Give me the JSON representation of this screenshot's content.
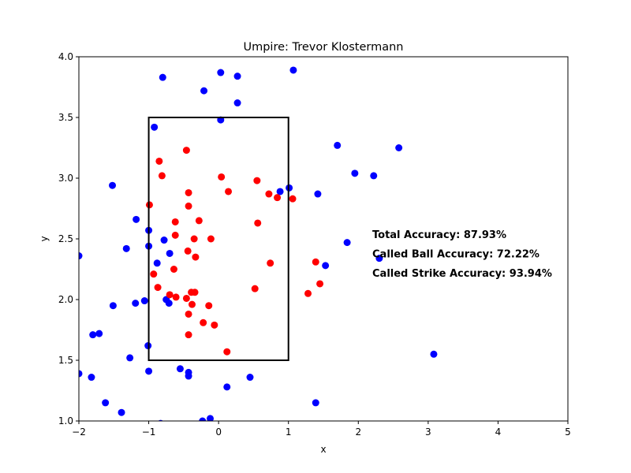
{
  "chart_data": {
    "type": "scatter",
    "title": "Umpire: Trevor Klostermann",
    "xlabel": "x",
    "ylabel": "y",
    "xlim": [
      -2,
      5
    ],
    "ylim": [
      1.0,
      4.0
    ],
    "xticks": [
      -2,
      -1,
      0,
      1,
      2,
      3,
      4,
      5
    ],
    "xtick_labels": [
      "−2",
      "−1",
      "0",
      "1",
      "2",
      "3",
      "4",
      "5"
    ],
    "yticks": [
      1.0,
      1.5,
      2.0,
      2.5,
      3.0,
      3.5,
      4.0
    ],
    "ytick_labels": [
      "1.0",
      "1.5",
      "2.0",
      "2.5",
      "3.0",
      "3.5",
      "4.0"
    ],
    "grid": false,
    "strike_zone": {
      "x": [
        -1,
        1
      ],
      "y": [
        1.5,
        3.5
      ]
    },
    "annotations": [
      {
        "text": "Total Accuracy: 87.93%",
        "x": 2.2,
        "y": 2.53
      },
      {
        "text": "Called Ball Accuracy: 72.22%",
        "x": 2.2,
        "y": 2.37
      },
      {
        "text": "Called Strike Accuracy: 93.94%",
        "x": 2.2,
        "y": 2.21
      }
    ],
    "series": [
      {
        "color": "#0000ff",
        "points": [
          [
            -0.8,
            3.83
          ],
          [
            0.03,
            3.87
          ],
          [
            0.27,
            3.84
          ],
          [
            1.07,
            3.89
          ],
          [
            -0.21,
            3.72
          ],
          [
            0.27,
            3.62
          ],
          [
            0.03,
            3.48
          ],
          [
            -0.92,
            3.42
          ],
          [
            1.7,
            3.27
          ],
          [
            2.58,
            3.25
          ],
          [
            1.95,
            3.04
          ],
          [
            2.22,
            3.02
          ],
          [
            -1.52,
            2.94
          ],
          [
            1.01,
            2.92
          ],
          [
            0.88,
            2.89
          ],
          [
            1.42,
            2.87
          ],
          [
            -1.18,
            2.66
          ],
          [
            -1.0,
            2.57
          ],
          [
            -0.78,
            2.49
          ],
          [
            1.84,
            2.47
          ],
          [
            -1.0,
            2.44
          ],
          [
            -1.32,
            2.42
          ],
          [
            -0.7,
            2.38
          ],
          [
            -2.0,
            2.36
          ],
          [
            2.3,
            2.34
          ],
          [
            -0.88,
            2.3
          ],
          [
            1.53,
            2.28
          ],
          [
            -0.75,
            2.0
          ],
          [
            -1.06,
            1.99
          ],
          [
            -0.71,
            1.97
          ],
          [
            -1.19,
            1.97
          ],
          [
            -1.51,
            1.95
          ],
          [
            -1.71,
            1.72
          ],
          [
            -1.8,
            1.71
          ],
          [
            -1.01,
            1.62
          ],
          [
            -1.27,
            1.52
          ],
          [
            3.08,
            1.55
          ],
          [
            -0.55,
            1.43
          ],
          [
            -1.0,
            1.41
          ],
          [
            -2.0,
            1.39
          ],
          [
            -0.43,
            1.4
          ],
          [
            -1.82,
            1.36
          ],
          [
            -0.43,
            1.37
          ],
          [
            0.45,
            1.36
          ],
          [
            0.12,
            1.28
          ],
          [
            -1.62,
            1.15
          ],
          [
            1.39,
            1.15
          ],
          [
            -1.39,
            1.07
          ],
          [
            -0.12,
            1.02
          ],
          [
            -0.23,
            1.0
          ],
          [
            -0.83,
            0.98
          ]
        ]
      },
      {
        "color": "#ff0000",
        "points": [
          [
            -0.46,
            3.23
          ],
          [
            -0.85,
            3.14
          ],
          [
            -0.81,
            3.02
          ],
          [
            0.04,
            3.01
          ],
          [
            0.55,
            2.98
          ],
          [
            -0.43,
            2.88
          ],
          [
            0.14,
            2.89
          ],
          [
            0.72,
            2.87
          ],
          [
            0.84,
            2.84
          ],
          [
            1.06,
            2.83
          ],
          [
            -0.99,
            2.78
          ],
          [
            -0.43,
            2.77
          ],
          [
            -0.62,
            2.64
          ],
          [
            -0.28,
            2.65
          ],
          [
            0.56,
            2.63
          ],
          [
            -0.62,
            2.53
          ],
          [
            -0.35,
            2.5
          ],
          [
            -0.11,
            2.5
          ],
          [
            -0.44,
            2.4
          ],
          [
            -0.33,
            2.35
          ],
          [
            0.74,
            2.3
          ],
          [
            1.39,
            2.31
          ],
          [
            -0.64,
            2.25
          ],
          [
            -0.93,
            2.21
          ],
          [
            1.45,
            2.13
          ],
          [
            -0.87,
            2.1
          ],
          [
            0.52,
            2.09
          ],
          [
            -0.39,
            2.06
          ],
          [
            -0.34,
            2.06
          ],
          [
            1.28,
            2.05
          ],
          [
            -0.7,
            2.04
          ],
          [
            -0.61,
            2.02
          ],
          [
            -0.46,
            2.01
          ],
          [
            -0.38,
            1.96
          ],
          [
            -0.14,
            1.95
          ],
          [
            -0.43,
            1.88
          ],
          [
            -0.22,
            1.81
          ],
          [
            -0.06,
            1.79
          ],
          [
            -0.43,
            1.71
          ],
          [
            0.12,
            1.57
          ]
        ]
      }
    ]
  }
}
